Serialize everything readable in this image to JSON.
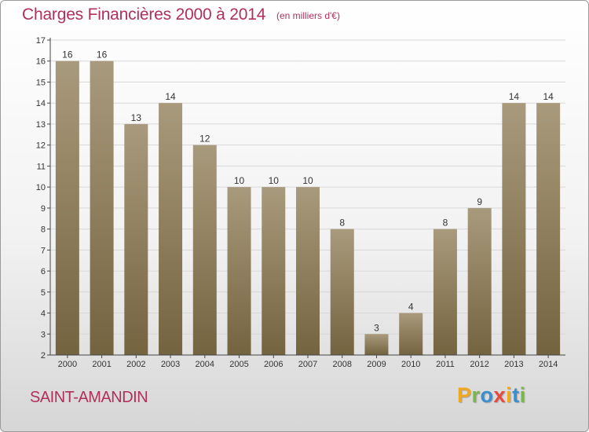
{
  "header": {
    "title": "Charges Financières 2000 à 2014",
    "subtitle": "(en milliers d'€)"
  },
  "footer": {
    "commune": "SAINT-AMANDIN",
    "logo_letters": [
      "P",
      "r",
      "o",
      "x",
      "i",
      "t",
      "i"
    ],
    "logo_colors": [
      "#f2a81d",
      "#7ab648",
      "#3a8fd0",
      "#e8483f",
      "#f2a81d",
      "#3a8fd0",
      "#7ab648"
    ]
  },
  "colors": {
    "bar_top": "#a89a7c",
    "bar_bottom": "#74633f",
    "axis": "#444444",
    "grid": "#d8d8d8",
    "title": "#b0305a"
  },
  "chart_data": {
    "type": "bar",
    "categories": [
      "2000",
      "2001",
      "2002",
      "2003",
      "2004",
      "2005",
      "2006",
      "2007",
      "2008",
      "2009",
      "2010",
      "2011",
      "2012",
      "2013",
      "2014"
    ],
    "values": [
      16,
      16,
      13,
      14,
      12,
      10,
      10,
      10,
      8,
      3,
      4,
      8,
      9,
      14,
      14
    ],
    "title": "Charges Financières 2000 à 2014",
    "ylim": [
      2,
      17
    ],
    "yticks": [
      2,
      3,
      4,
      5,
      6,
      7,
      8,
      9,
      10,
      11,
      12,
      13,
      14,
      15,
      16,
      17
    ],
    "grid": true,
    "data_labels": true
  }
}
